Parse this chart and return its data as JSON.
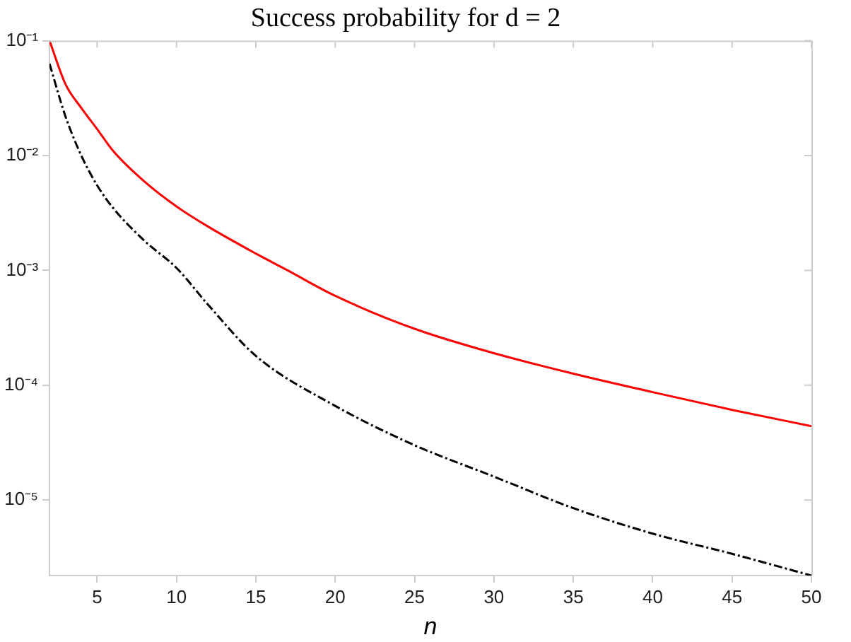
{
  "chart_data": {
    "type": "line",
    "title": "Success probability for d = 2",
    "xlabel": "n",
    "log": "y",
    "grid": false,
    "legend": false,
    "marker": "none",
    "xlim": [
      2,
      50
    ],
    "xticks": [
      5,
      10,
      15,
      20,
      25,
      30,
      35,
      40,
      45,
      50
    ],
    "ylim": [
      2.2e-06,
      0.1
    ],
    "yticks": [
      {
        "value": 1e-05,
        "label": "10⁻⁵"
      },
      {
        "value": 0.0001,
        "label": "10⁻⁴"
      },
      {
        "value": 0.001,
        "label": "10⁻³"
      },
      {
        "value": 0.01,
        "label": "10⁻²"
      },
      {
        "value": 0.1,
        "label": "10⁻¹"
      }
    ],
    "series": [
      {
        "color": "#ff0000",
        "line_style": "solid",
        "x": [
          2,
          3,
          4,
          5,
          6,
          8,
          10,
          12,
          15,
          17,
          20,
          25,
          30,
          35,
          40,
          45,
          50
        ],
        "values": [
          0.1,
          0.042,
          0.026,
          0.017,
          0.011,
          0.0059,
          0.0036,
          0.0024,
          0.0014,
          0.001,
          0.0006,
          0.00031,
          0.00019,
          0.000126,
          8.7e-05,
          6.1e-05,
          4.4e-05
        ]
      },
      {
        "color": "#000000",
        "line_style": "dashed",
        "x": [
          2,
          3,
          4,
          5,
          6,
          8,
          10,
          12,
          15,
          20,
          25,
          30,
          35,
          40,
          45,
          50
        ],
        "values": [
          0.063,
          0.022,
          0.01,
          0.0055,
          0.0035,
          0.0018,
          0.00105,
          0.0005,
          0.00018,
          6.6e-05,
          3e-05,
          1.6e-05,
          8.5e-06,
          5.1e-06,
          3.4e-06,
          2.2e-06
        ]
      }
    ]
  }
}
